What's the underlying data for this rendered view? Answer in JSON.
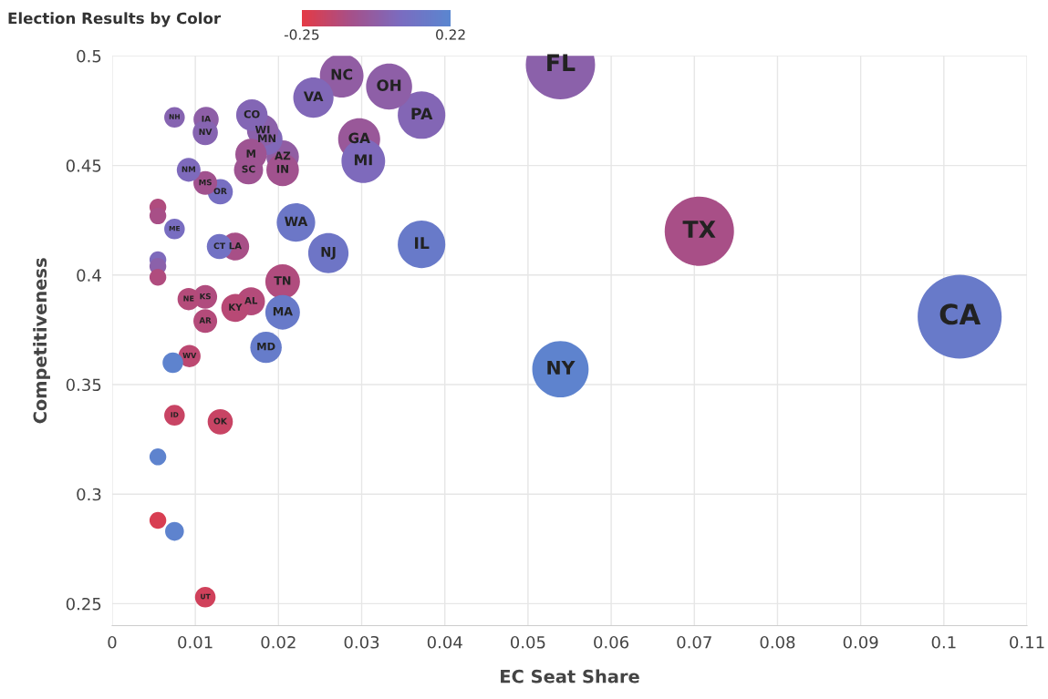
{
  "chart_data": {
    "type": "bubble",
    "xlabel": "EC Seat Share",
    "ylabel": "Competitiveness",
    "clabel": "Election Results by Color",
    "clim": [
      -0.25,
      0.22
    ],
    "cticks": [
      -0.25,
      0.22
    ],
    "xlim": [
      0,
      0.11
    ],
    "ylim": [
      0.24,
      0.5
    ],
    "xticks": [
      0,
      0.01,
      0.02,
      0.03,
      0.04,
      0.05,
      0.06,
      0.07,
      0.08,
      0.09,
      0.1,
      0.11
    ],
    "yticks": [
      0.25,
      0.3,
      0.35,
      0.4,
      0.45,
      0.5
    ],
    "grid": true,
    "x": [
      0.1019,
      0.0706,
      0.0539,
      0.0539,
      0.0372,
      0.0372,
      0.0333,
      0.0297,
      0.0302,
      0.0276,
      0.0242,
      0.026,
      0.0221,
      0.0205,
      0.0205,
      0.0185,
      0.0205,
      0.0205,
      0.0186,
      0.0181,
      0.0167,
      0.0168,
      0.0164,
      0.0167,
      0.0148,
      0.0148,
      0.0129,
      0.013,
      0.013,
      0.0112,
      0.0112,
      0.0112,
      0.0112,
      0.0113,
      0.0112,
      0.0092,
      0.0092,
      0.0093,
      0.0075,
      0.0075,
      0.0073,
      0.0075,
      0.0075,
      0.0055,
      0.0055,
      0.0055,
      0.0055,
      0.0055,
      0.0055,
      0.0055
    ],
    "values": [
      0.381,
      0.42,
      0.496,
      0.357,
      0.414,
      0.473,
      0.486,
      0.462,
      0.452,
      0.491,
      0.481,
      0.41,
      0.424,
      0.397,
      0.383,
      0.367,
      0.454,
      0.448,
      0.462,
      0.466,
      0.455,
      0.473,
      0.448,
      0.388,
      0.385,
      0.413,
      0.413,
      0.438,
      0.333,
      0.442,
      0.379,
      0.39,
      0.253,
      0.471,
      0.465,
      0.448,
      0.389,
      0.363,
      0.472,
      0.421,
      0.36,
      0.336,
      0.283,
      0.431,
      0.427,
      0.407,
      0.404,
      0.399,
      0.317,
      0.288
    ],
    "sizes": [
      1,
      0.68,
      0.68,
      0.45,
      0.32,
      0.32,
      0.3,
      0.25,
      0.27,
      0.27,
      0.23,
      0.23,
      0.21,
      0.17,
      0.17,
      0.14,
      0.15,
      0.15,
      0.14,
      0.14,
      0.14,
      0.14,
      0.12,
      0.11,
      0.11,
      0.11,
      0.09,
      0.09,
      0.09,
      0.08,
      0.08,
      0.08,
      0.06,
      0.09,
      0.09,
      0.08,
      0.07,
      0.07,
      0.06,
      0.06,
      0.06,
      0.06,
      0.05,
      0.04,
      0.04,
      0.04,
      0.04,
      0.04,
      0.04,
      0.04
    ],
    "cvalues": [
      0.15,
      -0.1,
      0.0,
      0.2,
      0.15,
      0.03,
      -0.01,
      -0.05,
      0.05,
      -0.02,
      0.04,
      0.12,
      0.13,
      -0.12,
      0.15,
      0.16,
      -0.02,
      -0.08,
      0.04,
      0.0,
      -0.07,
      0.03,
      -0.07,
      -0.13,
      -0.14,
      -0.1,
      0.1,
      0.08,
      -0.18,
      -0.08,
      -0.13,
      -0.12,
      -0.2,
      -0.01,
      0.02,
      0.05,
      -0.13,
      -0.15,
      0.02,
      0.07,
      0.2,
      -0.18,
      0.2,
      -0.12,
      -0.1,
      0.05,
      0.0,
      -0.12,
      0.2,
      -0.22
    ],
    "annotations": [
      {
        "text": "CA",
        "x": 0.1019,
        "y": 0.381
      },
      {
        "text": "TX",
        "x": 0.0706,
        "y": 0.42
      },
      {
        "text": "FL",
        "x": 0.0539,
        "y": 0.496
      },
      {
        "text": "NY",
        "x": 0.0539,
        "y": 0.357
      },
      {
        "text": "IL",
        "x": 0.0372,
        "y": 0.414
      },
      {
        "text": "PA",
        "x": 0.0372,
        "y": 0.473
      },
      {
        "text": "OH",
        "x": 0.0333,
        "y": 0.486
      },
      {
        "text": "GA",
        "x": 0.0297,
        "y": 0.462
      },
      {
        "text": "MI",
        "x": 0.0302,
        "y": 0.452
      },
      {
        "text": "NC",
        "x": 0.0276,
        "y": 0.491
      },
      {
        "text": "VA",
        "x": 0.0242,
        "y": 0.481
      },
      {
        "text": "NJ",
        "x": 0.026,
        "y": 0.41
      },
      {
        "text": "WA",
        "x": 0.0221,
        "y": 0.424
      },
      {
        "text": "TN",
        "x": 0.0205,
        "y": 0.397
      },
      {
        "text": "MA",
        "x": 0.0205,
        "y": 0.383
      },
      {
        "text": "MD",
        "x": 0.0185,
        "y": 0.367
      },
      {
        "text": "AZ",
        "x": 0.0205,
        "y": 0.454
      },
      {
        "text": "IN",
        "x": 0.0205,
        "y": 0.448
      },
      {
        "text": "MN",
        "x": 0.0186,
        "y": 0.462
      },
      {
        "text": "WI",
        "x": 0.0181,
        "y": 0.466
      },
      {
        "text": "M",
        "x": 0.0167,
        "y": 0.455
      },
      {
        "text": "CO",
        "x": 0.0168,
        "y": 0.473
      },
      {
        "text": "SC",
        "x": 0.0164,
        "y": 0.448
      },
      {
        "text": "AL",
        "x": 0.0167,
        "y": 0.388
      },
      {
        "text": "KY",
        "x": 0.0148,
        "y": 0.385
      },
      {
        "text": "LA",
        "x": 0.0148,
        "y": 0.413
      },
      {
        "text": "CT",
        "x": 0.0129,
        "y": 0.413
      },
      {
        "text": "OR",
        "x": 0.013,
        "y": 0.438
      },
      {
        "text": "OK",
        "x": 0.013,
        "y": 0.333
      },
      {
        "text": "MS",
        "x": 0.0112,
        "y": 0.442
      },
      {
        "text": "AR",
        "x": 0.0112,
        "y": 0.379
      },
      {
        "text": "KS",
        "x": 0.0112,
        "y": 0.39
      },
      {
        "text": "UT",
        "x": 0.0112,
        "y": 0.253
      },
      {
        "text": "IA",
        "x": 0.0113,
        "y": 0.471
      },
      {
        "text": "NV",
        "x": 0.0112,
        "y": 0.465
      },
      {
        "text": "NM",
        "x": 0.0092,
        "y": 0.448
      },
      {
        "text": "NE",
        "x": 0.0092,
        "y": 0.389
      },
      {
        "text": "WV",
        "x": 0.0093,
        "y": 0.363
      },
      {
        "text": "NH",
        "x": 0.0075,
        "y": 0.472
      },
      {
        "text": "ME",
        "x": 0.0075,
        "y": 0.421
      },
      {
        "text": "ID",
        "x": 0.0075,
        "y": 0.336
      }
    ]
  }
}
